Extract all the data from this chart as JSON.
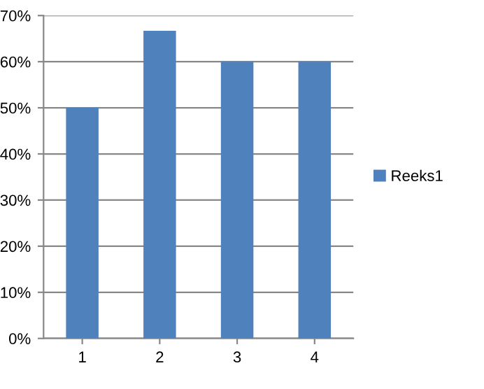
{
  "chart_data": {
    "type": "bar",
    "categories": [
      "1",
      "2",
      "3",
      "4"
    ],
    "series": [
      {
        "name": "Reeks1",
        "color": "#4f81bd",
        "values": [
          50,
          66.7,
          60,
          60
        ]
      }
    ],
    "ylim": [
      0,
      70
    ],
    "yticks": [
      {
        "value": 0,
        "label": "0%"
      },
      {
        "value": 10,
        "label": "10%"
      },
      {
        "value": 20,
        "label": "20%"
      },
      {
        "value": 30,
        "label": "30%"
      },
      {
        "value": 40,
        "label": "40%"
      },
      {
        "value": 50,
        "label": "50%"
      },
      {
        "value": 60,
        "label": "60%"
      },
      {
        "value": 70,
        "label": "70%"
      }
    ],
    "grid": "y",
    "legend": "right"
  }
}
